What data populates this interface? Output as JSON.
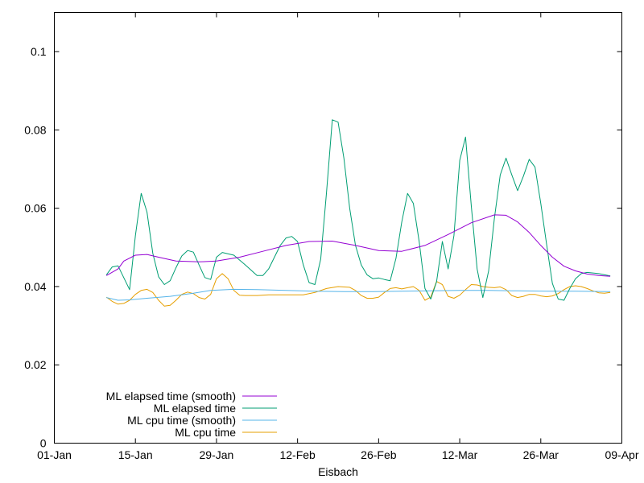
{
  "chart_data": {
    "type": "line",
    "title": "",
    "xlabel": "Eisbach",
    "ylabel": "",
    "x_axis_type": "date",
    "xlim": [
      "2023-01-01",
      "2023-04-09"
    ],
    "ylim": [
      0,
      0.11
    ],
    "x_ticks": [
      {
        "date": "2023-01-01",
        "label": "01-Jan"
      },
      {
        "date": "2023-01-15",
        "label": "15-Jan"
      },
      {
        "date": "2023-01-29",
        "label": "29-Jan"
      },
      {
        "date": "2023-02-12",
        "label": "12-Feb"
      },
      {
        "date": "2023-02-26",
        "label": "26-Feb"
      },
      {
        "date": "2023-03-12",
        "label": "12-Mar"
      },
      {
        "date": "2023-03-26",
        "label": "26-Mar"
      },
      {
        "date": "2023-04-09",
        "label": "09-Apr"
      }
    ],
    "y_ticks": [
      {
        "value": 0,
        "label": "0"
      },
      {
        "value": 0.02,
        "label": "0.02"
      },
      {
        "value": 0.04,
        "label": "0.04"
      },
      {
        "value": 0.06,
        "label": "0.06"
      },
      {
        "value": 0.08,
        "label": "0.08"
      },
      {
        "value": 0.1,
        "label": "0.1"
      }
    ],
    "grid": false,
    "legend_position": "bottom-left",
    "series": [
      {
        "name": "ML elapsed time (smooth)",
        "color": "#9400d3",
        "points": [
          [
            "2023-01-10",
            0.0428
          ],
          [
            "2023-01-12",
            0.0445
          ],
          [
            "2023-01-13",
            0.0465
          ],
          [
            "2023-01-15",
            0.048
          ],
          [
            "2023-01-17",
            0.0482
          ],
          [
            "2023-01-19",
            0.0475
          ],
          [
            "2023-01-22",
            0.0465
          ],
          [
            "2023-01-26",
            0.0463
          ],
          [
            "2023-01-29",
            0.0465
          ],
          [
            "2023-02-02",
            0.0475
          ],
          [
            "2023-02-06",
            0.049
          ],
          [
            "2023-02-10",
            0.0505
          ],
          [
            "2023-02-14",
            0.0515
          ],
          [
            "2023-02-18",
            0.0516
          ],
          [
            "2023-02-22",
            0.0505
          ],
          [
            "2023-02-26",
            0.0492
          ],
          [
            "2023-03-02",
            0.049
          ],
          [
            "2023-03-06",
            0.0505
          ],
          [
            "2023-03-10",
            0.0533
          ],
          [
            "2023-03-14",
            0.0563
          ],
          [
            "2023-03-18",
            0.0583
          ],
          [
            "2023-03-20",
            0.0582
          ],
          [
            "2023-03-22",
            0.0565
          ],
          [
            "2023-03-24",
            0.0538
          ],
          [
            "2023-03-26",
            0.0505
          ],
          [
            "2023-03-28",
            0.0475
          ],
          [
            "2023-03-30",
            0.0452
          ],
          [
            "2023-04-01",
            0.044
          ],
          [
            "2023-04-03",
            0.0432
          ],
          [
            "2023-04-05",
            0.0428
          ],
          [
            "2023-04-07",
            0.0426
          ]
        ]
      },
      {
        "name": "ML elapsed time",
        "color": "#009e73",
        "points": [
          [
            "2023-01-10",
            0.043
          ],
          [
            "2023-01-11",
            0.045
          ],
          [
            "2023-01-12",
            0.0453
          ],
          [
            "2023-01-14",
            0.0392
          ],
          [
            "2023-01-15",
            0.053
          ],
          [
            "2023-01-16",
            0.0638
          ],
          [
            "2023-01-17",
            0.059
          ],
          [
            "2023-01-18",
            0.0485
          ],
          [
            "2023-01-19",
            0.0425
          ],
          [
            "2023-01-20",
            0.0405
          ],
          [
            "2023-01-21",
            0.0415
          ],
          [
            "2023-01-22",
            0.0448
          ],
          [
            "2023-01-23",
            0.0478
          ],
          [
            "2023-01-24",
            0.0492
          ],
          [
            "2023-01-25",
            0.0488
          ],
          [
            "2023-01-26",
            0.0455
          ],
          [
            "2023-01-27",
            0.0423
          ],
          [
            "2023-01-28",
            0.0418
          ],
          [
            "2023-01-29",
            0.0475
          ],
          [
            "2023-01-30",
            0.0487
          ],
          [
            "2023-02-01",
            0.048
          ],
          [
            "2023-02-03",
            0.0455
          ],
          [
            "2023-02-05",
            0.0428
          ],
          [
            "2023-02-06",
            0.0428
          ],
          [
            "2023-02-07",
            0.0445
          ],
          [
            "2023-02-09",
            0.0505
          ],
          [
            "2023-02-10",
            0.0524
          ],
          [
            "2023-02-11",
            0.0528
          ],
          [
            "2023-02-12",
            0.0515
          ],
          [
            "2023-02-13",
            0.0455
          ],
          [
            "2023-02-14",
            0.041
          ],
          [
            "2023-02-15",
            0.0405
          ],
          [
            "2023-02-16",
            0.047
          ],
          [
            "2023-02-17",
            0.064
          ],
          [
            "2023-02-18",
            0.0826
          ],
          [
            "2023-02-19",
            0.082
          ],
          [
            "2023-02-20",
            0.0728
          ],
          [
            "2023-02-21",
            0.06
          ],
          [
            "2023-02-22",
            0.0505
          ],
          [
            "2023-02-23",
            0.0455
          ],
          [
            "2023-02-24",
            0.043
          ],
          [
            "2023-02-25",
            0.042
          ],
          [
            "2023-02-26",
            0.0422
          ],
          [
            "2023-02-27",
            0.0418
          ],
          [
            "2023-02-28",
            0.0415
          ],
          [
            "2023-03-01",
            0.0472
          ],
          [
            "2023-03-02",
            0.0565
          ],
          [
            "2023-03-03",
            0.0638
          ],
          [
            "2023-03-04",
            0.0612
          ],
          [
            "2023-03-05",
            0.0515
          ],
          [
            "2023-03-06",
            0.0395
          ],
          [
            "2023-03-07",
            0.0368
          ],
          [
            "2023-03-08",
            0.0412
          ],
          [
            "2023-03-09",
            0.0515
          ],
          [
            "2023-03-10",
            0.0445
          ],
          [
            "2023-03-11",
            0.053
          ],
          [
            "2023-03-12",
            0.0722
          ],
          [
            "2023-03-13",
            0.0782
          ],
          [
            "2023-03-14",
            0.0605
          ],
          [
            "2023-03-15",
            0.0445
          ],
          [
            "2023-03-16",
            0.0372
          ],
          [
            "2023-03-17",
            0.044
          ],
          [
            "2023-03-18",
            0.0575
          ],
          [
            "2023-03-19",
            0.0685
          ],
          [
            "2023-03-20",
            0.0728
          ],
          [
            "2023-03-21",
            0.0685
          ],
          [
            "2023-03-22",
            0.0645
          ],
          [
            "2023-03-23",
            0.0682
          ],
          [
            "2023-03-24",
            0.0725
          ],
          [
            "2023-03-25",
            0.0705
          ],
          [
            "2023-03-26",
            0.0612
          ],
          [
            "2023-03-27",
            0.0508
          ],
          [
            "2023-03-28",
            0.0408
          ],
          [
            "2023-03-29",
            0.0368
          ],
          [
            "2023-03-30",
            0.0365
          ],
          [
            "2023-03-31",
            0.0395
          ],
          [
            "2023-04-01",
            0.042
          ],
          [
            "2023-04-02",
            0.0433
          ],
          [
            "2023-04-03",
            0.0436
          ],
          [
            "2023-04-05",
            0.0433
          ],
          [
            "2023-04-07",
            0.0427
          ]
        ]
      },
      {
        "name": "ML cpu time (smooth)",
        "color": "#56b4e9",
        "points": [
          [
            "2023-01-10",
            0.0372
          ],
          [
            "2023-01-12",
            0.0365
          ],
          [
            "2023-01-14",
            0.0366
          ],
          [
            "2023-01-17",
            0.037
          ],
          [
            "2023-01-21",
            0.0375
          ],
          [
            "2023-01-25",
            0.0383
          ],
          [
            "2023-01-28",
            0.039
          ],
          [
            "2023-02-01",
            0.0393
          ],
          [
            "2023-02-05",
            0.0392
          ],
          [
            "2023-02-10",
            0.039
          ],
          [
            "2023-02-15",
            0.0388
          ],
          [
            "2023-02-20",
            0.0387
          ],
          [
            "2023-02-25",
            0.0387
          ],
          [
            "2023-03-02",
            0.0388
          ],
          [
            "2023-03-07",
            0.0389
          ],
          [
            "2023-03-12",
            0.039
          ],
          [
            "2023-03-17",
            0.039
          ],
          [
            "2023-03-22",
            0.0389
          ],
          [
            "2023-03-27",
            0.0388
          ],
          [
            "2023-04-01",
            0.0388
          ],
          [
            "2023-04-07",
            0.0387
          ]
        ]
      },
      {
        "name": "ML cpu time",
        "color": "#e69f00",
        "points": [
          [
            "2023-01-10",
            0.0373
          ],
          [
            "2023-01-11",
            0.0362
          ],
          [
            "2023-01-12",
            0.0355
          ],
          [
            "2023-01-13",
            0.0357
          ],
          [
            "2023-01-14",
            0.0365
          ],
          [
            "2023-01-15",
            0.038
          ],
          [
            "2023-01-16",
            0.039
          ],
          [
            "2023-01-17",
            0.0393
          ],
          [
            "2023-01-18",
            0.0385
          ],
          [
            "2023-01-19",
            0.0365
          ],
          [
            "2023-01-20",
            0.035
          ],
          [
            "2023-01-21",
            0.0352
          ],
          [
            "2023-01-22",
            0.0365
          ],
          [
            "2023-01-23",
            0.038
          ],
          [
            "2023-01-24",
            0.0386
          ],
          [
            "2023-01-25",
            0.0382
          ],
          [
            "2023-01-26",
            0.0372
          ],
          [
            "2023-01-27",
            0.0368
          ],
          [
            "2023-01-28",
            0.038
          ],
          [
            "2023-01-29",
            0.042
          ],
          [
            "2023-01-30",
            0.0433
          ],
          [
            "2023-01-31",
            0.042
          ],
          [
            "2023-02-01",
            0.039
          ],
          [
            "2023-02-02",
            0.0378
          ],
          [
            "2023-02-03",
            0.0377
          ],
          [
            "2023-02-05",
            0.0377
          ],
          [
            "2023-02-07",
            0.0379
          ],
          [
            "2023-02-09",
            0.0379
          ],
          [
            "2023-02-11",
            0.0379
          ],
          [
            "2023-02-13",
            0.0379
          ],
          [
            "2023-02-15",
            0.0385
          ],
          [
            "2023-02-17",
            0.0395
          ],
          [
            "2023-02-19",
            0.04
          ],
          [
            "2023-02-21",
            0.0398
          ],
          [
            "2023-02-22",
            0.039
          ],
          [
            "2023-02-23",
            0.0377
          ],
          [
            "2023-02-24",
            0.037
          ],
          [
            "2023-02-25",
            0.037
          ],
          [
            "2023-02-26",
            0.0373
          ],
          [
            "2023-02-27",
            0.0385
          ],
          [
            "2023-02-28",
            0.0395
          ],
          [
            "2023-03-01",
            0.0397
          ],
          [
            "2023-03-02",
            0.0394
          ],
          [
            "2023-03-03",
            0.0397
          ],
          [
            "2023-03-04",
            0.04
          ],
          [
            "2023-03-05",
            0.039
          ],
          [
            "2023-03-06",
            0.0365
          ],
          [
            "2023-03-07",
            0.0373
          ],
          [
            "2023-03-08",
            0.0413
          ],
          [
            "2023-03-09",
            0.0405
          ],
          [
            "2023-03-10",
            0.0375
          ],
          [
            "2023-03-11",
            0.037
          ],
          [
            "2023-03-12",
            0.0378
          ],
          [
            "2023-03-13",
            0.0392
          ],
          [
            "2023-03-14",
            0.0405
          ],
          [
            "2023-03-15",
            0.0404
          ],
          [
            "2023-03-16",
            0.04
          ],
          [
            "2023-03-17",
            0.0398
          ],
          [
            "2023-03-18",
            0.0397
          ],
          [
            "2023-03-19",
            0.0399
          ],
          [
            "2023-03-20",
            0.0392
          ],
          [
            "2023-03-21",
            0.0377
          ],
          [
            "2023-03-22",
            0.0372
          ],
          [
            "2023-03-23",
            0.0375
          ],
          [
            "2023-03-24",
            0.038
          ],
          [
            "2023-03-25",
            0.038
          ],
          [
            "2023-03-26",
            0.0376
          ],
          [
            "2023-03-27",
            0.0374
          ],
          [
            "2023-03-28",
            0.0376
          ],
          [
            "2023-03-29",
            0.0382
          ],
          [
            "2023-03-30",
            0.0392
          ],
          [
            "2023-03-31",
            0.04
          ],
          [
            "2023-04-01",
            0.0402
          ],
          [
            "2023-04-02",
            0.04
          ],
          [
            "2023-04-03",
            0.0395
          ],
          [
            "2023-04-04",
            0.0389
          ],
          [
            "2023-04-05",
            0.0384
          ],
          [
            "2023-04-06",
            0.0383
          ],
          [
            "2023-04-07",
            0.0385
          ]
        ]
      }
    ]
  }
}
